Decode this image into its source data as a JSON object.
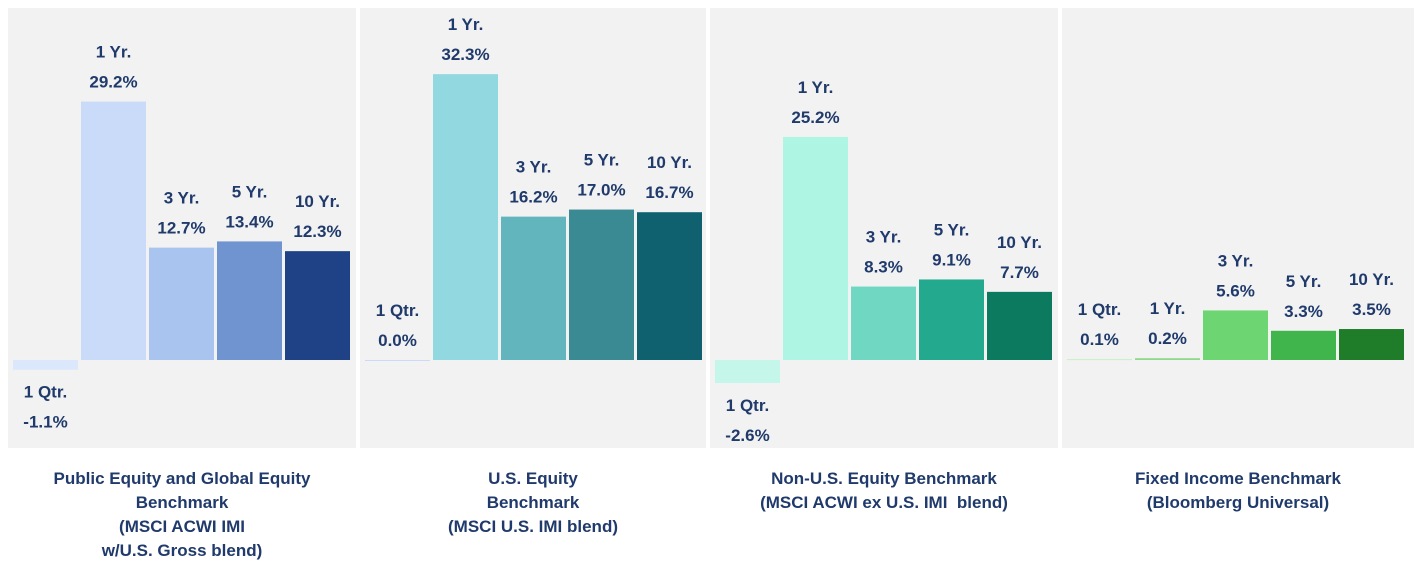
{
  "chart_data": [
    {
      "type": "bar",
      "title": [
        "Public Equity and Global Equity",
        "Benchmark",
        "(MSCI ACWI IMI",
        "w/U.S. Gross blend)"
      ],
      "categories": [
        "1 Qtr.",
        "1 Yr.",
        "3 Yr.",
        "5 Yr.",
        "10 Yr."
      ],
      "values": [
        -1.1,
        29.2,
        12.7,
        13.4,
        12.3
      ],
      "value_labels": [
        "-1.1%",
        "29.2%",
        "12.7%",
        "13.4%",
        "12.3%"
      ],
      "colors": [
        "#dbe7fb",
        "#c9dbf8",
        "#a9c4ee",
        "#7094cf",
        "#1f4286"
      ]
    },
    {
      "type": "bar",
      "title": [
        "U.S. Equity",
        "Benchmark",
        "(MSCI U.S. IMI blend)"
      ],
      "categories": [
        "1 Qtr.",
        "1 Yr.",
        "3 Yr.",
        "5 Yr.",
        "10 Yr."
      ],
      "values": [
        0.0,
        32.3,
        16.2,
        17.0,
        16.7
      ],
      "value_labels": [
        "0.0%",
        "32.3%",
        "16.2%",
        "17.0%",
        "16.7%"
      ],
      "colors": [
        "#c9dbf8",
        "#92d8e0",
        "#62b4bd",
        "#3a8a94",
        "#0f616f"
      ]
    },
    {
      "type": "bar",
      "title": [
        "Non-U.S. Equity Benchmark",
        "(MSCI ACWI ex U.S. IMI  blend)"
      ],
      "categories": [
        "1 Qtr.",
        "1 Yr.",
        "3 Yr.",
        "5 Yr.",
        "10 Yr."
      ],
      "values": [
        -2.6,
        25.2,
        8.3,
        9.1,
        7.7
      ],
      "value_labels": [
        "-2.6%",
        "25.2%",
        "8.3%",
        "9.1%",
        "7.7%"
      ],
      "colors": [
        "#c4f6ea",
        "#aef5e4",
        "#6fd7c2",
        "#23a98e",
        "#0c7a5e"
      ]
    },
    {
      "type": "bar",
      "title": [
        "Fixed Income Benchmark",
        "(Bloomberg Universal)"
      ],
      "categories": [
        "1 Qtr.",
        "1 Yr.",
        "3 Yr.",
        "5 Yr.",
        "10 Yr."
      ],
      "values": [
        0.1,
        0.2,
        5.6,
        3.3,
        3.5
      ],
      "value_labels": [
        "0.1%",
        "0.2%",
        "5.6%",
        "3.3%",
        "3.5%"
      ],
      "colors": [
        "#c8f0c8",
        "#8fd98a",
        "#6dd673",
        "#3fb54b",
        "#1f7d2a"
      ]
    }
  ]
}
